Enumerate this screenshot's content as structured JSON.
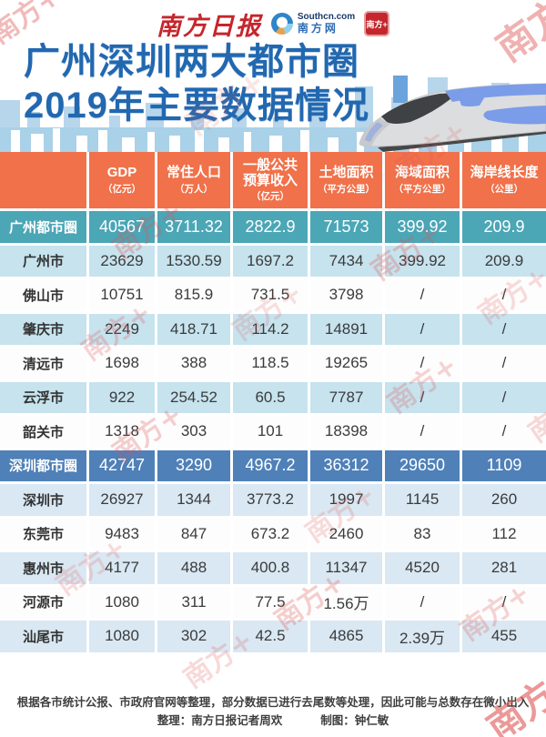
{
  "masthead": {
    "newspaper_logo": "南方日报",
    "site_logo_line1": "Southcn.com",
    "site_logo_line2": "南方网",
    "app_badge": "南方+"
  },
  "title": {
    "line1": "广州深圳两大都市圈",
    "line2": "2019年主要数据情况"
  },
  "chart_data": {
    "type": "table",
    "title": "广州深圳两大都市圈2019年主要数据情况",
    "columns": [
      {
        "label": "GDP",
        "unit": "（亿元）"
      },
      {
        "label": "常住人口",
        "unit": "（万人）"
      },
      {
        "label": "一般公共预算收入",
        "unit": "（亿元）"
      },
      {
        "label": "土地面积",
        "unit": "（平方公里）"
      },
      {
        "label": "海域面积",
        "unit": "（平方公里）"
      },
      {
        "label": "海岸线长度",
        "unit": "（公里）"
      }
    ],
    "rows": [
      {
        "name": "广州都市圈",
        "style": "group-teal",
        "values": [
          "40567",
          "3711.32",
          "2822.9",
          "71573",
          "399.92",
          "209.9"
        ]
      },
      {
        "name": "广州市",
        "style": "stripe-teal",
        "values": [
          "23629",
          "1530.59",
          "1697.2",
          "7434",
          "399.92",
          "209.9"
        ]
      },
      {
        "name": "佛山市",
        "style": "white",
        "values": [
          "10751",
          "815.9",
          "731.5",
          "3798",
          "/",
          "/"
        ]
      },
      {
        "name": "肇庆市",
        "style": "stripe-teal",
        "values": [
          "2249",
          "418.71",
          "114.2",
          "14891",
          "/",
          "/"
        ]
      },
      {
        "name": "清远市",
        "style": "white",
        "values": [
          "1698",
          "388",
          "118.5",
          "19265",
          "/",
          "/"
        ]
      },
      {
        "name": "云浮市",
        "style": "stripe-teal",
        "values": [
          "922",
          "254.52",
          "60.5",
          "7787",
          "/",
          "/"
        ]
      },
      {
        "name": "韶关市",
        "style": "white",
        "values": [
          "1318",
          "303",
          "101",
          "18398",
          "/",
          "/"
        ]
      },
      {
        "name": "深圳都市圈",
        "style": "group-blue",
        "values": [
          "42747",
          "3290",
          "4967.2",
          "36312",
          "29650",
          "1109"
        ]
      },
      {
        "name": "深圳市",
        "style": "stripe-blue",
        "values": [
          "26927",
          "1344",
          "3773.2",
          "1997",
          "1145",
          "260"
        ]
      },
      {
        "name": "东莞市",
        "style": "white",
        "values": [
          "9483",
          "847",
          "673.2",
          "2460",
          "83",
          "112"
        ]
      },
      {
        "name": "惠州市",
        "style": "stripe-blue",
        "values": [
          "4177",
          "488",
          "400.8",
          "11347",
          "4520",
          "281"
        ]
      },
      {
        "name": "河源市",
        "style": "white",
        "values": [
          "1080",
          "311",
          "77.5",
          "1.56万",
          "/",
          "/"
        ]
      },
      {
        "name": "汕尾市",
        "style": "stripe-blue",
        "values": [
          "1080",
          "302",
          "42.5",
          "4865",
          "2.39万",
          "455"
        ]
      }
    ]
  },
  "footer": {
    "note": "根据各市统计公报、市政府官网等整理，部分数据已进行去尾数等处理，因此可能与总数存在微小出入",
    "credit_editor": "整理：南方日报记者周欢",
    "credit_designer": "制图：钟仁敏"
  },
  "watermark": {
    "text": "南方+"
  },
  "colors": {
    "header_orange": "#f0714a",
    "group_teal": "#4ba6b6",
    "group_blue": "#4f80b8",
    "stripe_teal": "#c6e3ee",
    "stripe_blue": "#d9e8f3",
    "skyline_band": "#a9d1e8",
    "title_blue": "#2268b0",
    "masthead_red": "#c5262c",
    "watermark_pink": "#e05555"
  }
}
